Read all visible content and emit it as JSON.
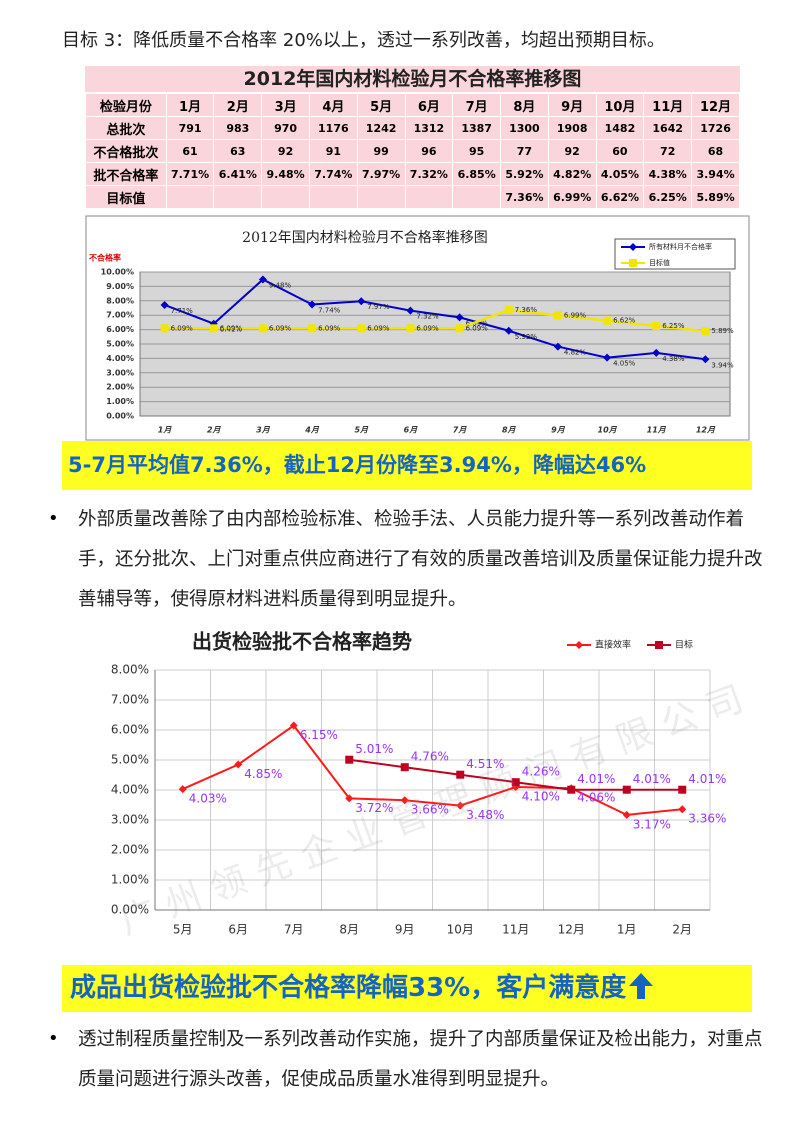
{
  "heading": "目标 3：降低质量不合格率 20%以上，透过一系列改善，均超出预期目标。",
  "table": {
    "title": "2012年国内材料检验月不合格率推移图",
    "rows": [
      [
        "检验月份",
        "1月",
        "2月",
        "3月",
        "4月",
        "5月",
        "6月",
        "7月",
        "8月",
        "9月",
        "10月",
        "11月",
        "12月"
      ],
      [
        "总批次",
        "791",
        "983",
        "970",
        "1176",
        "1242",
        "1312",
        "1387",
        "1300",
        "1908",
        "1482",
        "1642",
        "1726"
      ],
      [
        "不合格批次",
        "61",
        "63",
        "92",
        "91",
        "99",
        "96",
        "95",
        "77",
        "92",
        "60",
        "72",
        "68"
      ],
      [
        "批不合格率",
        "7.71%",
        "6.41%",
        "9.48%",
        "7.74%",
        "7.97%",
        "7.32%",
        "6.85%",
        "5.92%",
        "4.82%",
        "4.05%",
        "4.38%",
        "3.94%"
      ],
      [
        "目标值",
        null,
        null,
        null,
        null,
        null,
        null,
        null,
        "7.36%",
        "6.99%",
        "6.62%",
        "6.25%",
        "5.89%"
      ]
    ]
  },
  "chart_data": [
    {
      "type": "line",
      "title": "2012年国内材料检验月不合格率推移图",
      "y_label": "不合格率",
      "categories": [
        "1月",
        "2月",
        "3月",
        "4月",
        "5月",
        "6月",
        "7月",
        "8月",
        "9月",
        "10月",
        "11月",
        "12月"
      ],
      "series": [
        {
          "name": "所有材料月不合格率",
          "color": "#0000cc",
          "values": [
            7.71,
            6.41,
            9.48,
            7.74,
            7.97,
            7.32,
            6.85,
            5.92,
            4.82,
            4.05,
            4.38,
            3.94
          ],
          "value_labels": [
            "7.71%",
            "6.41%",
            "9.48%",
            "7.74%",
            "7.97%",
            "7.32%",
            "6.85%",
            "5.92%",
            "4.82%",
            "4.05%",
            "4.38%",
            "3.94%"
          ]
        },
        {
          "name": "目标值",
          "color": "#f2e600",
          "values": [
            6.09,
            6.09,
            6.09,
            6.09,
            6.09,
            6.09,
            6.09,
            7.36,
            6.99,
            6.62,
            6.25,
            5.89
          ],
          "value_labels": [
            "6.09%",
            "6.09%",
            "6.09%",
            "6.09%",
            "6.09%",
            "6.09%",
            "6.09%",
            "7.36%",
            "6.99%",
            "6.62%",
            "6.25%",
            "5.89%"
          ]
        }
      ],
      "ylim": [
        0,
        10
      ],
      "yticks": [
        {
          "value": 0,
          "label": "0.00%"
        },
        {
          "value": 1,
          "label": "1.00%"
        },
        {
          "value": 2,
          "label": "2.00%"
        },
        {
          "value": 3,
          "label": "3.00%"
        },
        {
          "value": 4,
          "label": "4.00%"
        },
        {
          "value": 5,
          "label": "5.00%"
        },
        {
          "value": 6,
          "label": "6.00%"
        },
        {
          "value": 7,
          "label": "7.00%"
        },
        {
          "value": 8,
          "label": "8.00%"
        },
        {
          "value": 9,
          "label": "9.00%"
        },
        {
          "value": 10,
          "label": "10.00%"
        }
      ],
      "grid": true,
      "legend": "top-right"
    },
    {
      "type": "line",
      "title": "出货检验批不合格率趋势",
      "categories": [
        "5月",
        "6月",
        "7月",
        "8月",
        "9月",
        "10月",
        "11月",
        "12月",
        "1月",
        "2月"
      ],
      "series": [
        {
          "name": "直接效率",
          "color": "#ff1a1a",
          "values": [
            4.03,
            4.85,
            6.15,
            3.72,
            3.66,
            3.48,
            4.1,
            4.06,
            3.17,
            3.36
          ],
          "value_labels": [
            "4.03%",
            "4.85%",
            "6.15%",
            "3.72%",
            "3.66%",
            "3.48%",
            "4.10%",
            "4.06%",
            "3.17%",
            "3.36%"
          ]
        },
        {
          "name": "目标",
          "color": "#c00020",
          "values": [
            null,
            null,
            null,
            5.01,
            4.76,
            4.51,
            4.26,
            4.01,
            4.01,
            4.01
          ],
          "value_labels": [
            null,
            null,
            null,
            "5.01%",
            "4.76%",
            "4.51%",
            "4.26%",
            "4.01%",
            "4.01%",
            "4.01%"
          ]
        }
      ],
      "ylim": [
        0,
        8
      ],
      "yticks": [
        {
          "value": 0,
          "label": "0.00%"
        },
        {
          "value": 1,
          "label": "1.00%"
        },
        {
          "value": 2,
          "label": "2.00%"
        },
        {
          "value": 3,
          "label": "3.00%"
        },
        {
          "value": 4,
          "label": "4.00%"
        },
        {
          "value": 5,
          "label": "5.00%"
        },
        {
          "value": 6,
          "label": "6.00%"
        },
        {
          "value": 7,
          "label": "7.00%"
        },
        {
          "value": 8,
          "label": "8.00%"
        }
      ],
      "grid": true,
      "legend": "top-right"
    }
  ],
  "banners": [
    "5-7月平均值7.36%，截止12月份降至3.94%，降幅达46%",
    "成品出货检验批不合格率降幅33%，客户满意度"
  ],
  "paragraphs": [
    "外部质量改善除了由内部检验标准、检验手法、人员能力提升等一系列改善动作着手，还分批次、上门对重点供应商进行了有效的质量改善培训及质量保证能力提升改善辅导等，使得原材料进料质量得到明显提升。",
    "透过制程质量控制及一系列改善动作实施，提升了内部质量保证及检出能力，对重点质量问题进行源头改善，促使成品质量水准得到明显提升。"
  ],
  "watermark": "广州领先企业管理顾问有限公司"
}
